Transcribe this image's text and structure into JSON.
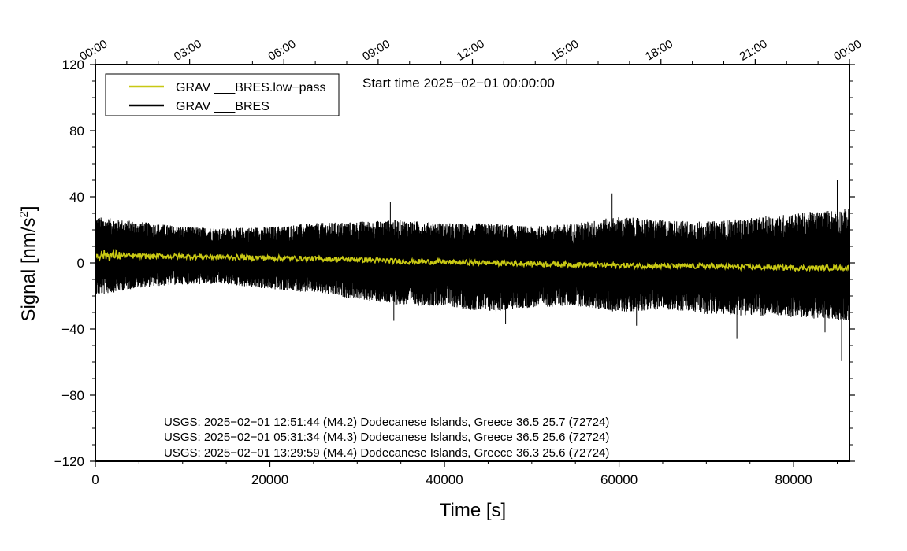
{
  "chart_data": {
    "type": "line",
    "xlabel": "Time [s]",
    "ylabel": "Signal [nm/s",
    "ylabel_superscript": "2",
    "ylabel_suffix": "]",
    "xlim": [
      0,
      86400
    ],
    "ylim": [
      -120,
      120
    ],
    "x_ticks": [
      0,
      20000,
      40000,
      60000,
      80000
    ],
    "x_tick_labels": [
      "0",
      "20000",
      "40000",
      "60000",
      "80000"
    ],
    "y_ticks": [
      120,
      80,
      40,
      0,
      -40,
      -80,
      -120
    ],
    "y_tick_labels": [
      "120",
      "80",
      "40",
      "0",
      "−40",
      "−80",
      "−120"
    ],
    "top_axis_ticks": [
      0,
      10800,
      21600,
      32400,
      43200,
      54000,
      64800,
      75600,
      86400
    ],
    "top_axis_labels": [
      "00:00",
      "03:00",
      "06:00",
      "09:00",
      "12:00",
      "15:00",
      "18:00",
      "21:00",
      "00:00"
    ],
    "start_time_label": "Start time 2025−02−01 00:00:00",
    "legend": [
      {
        "label": "GRAV ___BRES.low−pass",
        "color": "#c8c814"
      },
      {
        "label": "GRAV ___BRES",
        "color": "#000000"
      }
    ],
    "series": [
      {
        "name": "GRAV ___BRES",
        "color": "#000000",
        "envelope_note": "dense noisy signal; approximate upper/lower envelope in nm/s^2",
        "x": [
          0,
          5000,
          10000,
          15000,
          20000,
          25000,
          30000,
          35000,
          40000,
          45000,
          50000,
          55000,
          60000,
          65000,
          70000,
          75000,
          80000,
          86400
        ],
        "upper": [
          28,
          25,
          22,
          21,
          22,
          24,
          25,
          26,
          24,
          24,
          22,
          24,
          28,
          26,
          25,
          27,
          30,
          33
        ],
        "lower": [
          -20,
          -15,
          -13,
          -13,
          -16,
          -18,
          -22,
          -26,
          -26,
          -30,
          -27,
          -26,
          -30,
          -28,
          -31,
          -32,
          -33,
          -35
        ],
        "peaks": [
          {
            "x": 33800,
            "y": 37
          },
          {
            "x": 34200,
            "y": -35
          },
          {
            "x": 47000,
            "y": -37
          },
          {
            "x": 59200,
            "y": 42
          },
          {
            "x": 62000,
            "y": -38
          },
          {
            "x": 73500,
            "y": -46
          },
          {
            "x": 85000,
            "y": 50
          },
          {
            "x": 85500,
            "y": -59
          },
          {
            "x": 83600,
            "y": -42
          }
        ]
      },
      {
        "name": "GRAV ___BRES.low−pass",
        "color": "#c8c814",
        "x": [
          0,
          5000,
          10000,
          15000,
          20000,
          25000,
          30000,
          35000,
          40000,
          45000,
          50000,
          55000,
          60000,
          65000,
          70000,
          75000,
          80000,
          86400
        ],
        "values": [
          5,
          4,
          4,
          3.5,
          3,
          2.5,
          2,
          1,
          0.5,
          0,
          -0.5,
          -1,
          -1.5,
          -2,
          -2,
          -2.5,
          -3,
          -3
        ]
      }
    ],
    "annotations": [
      "USGS: 2025−02−01 12:51:44 (M4.2) Dodecanese Islands, Greece 36.5 25.7 (72724)",
      "USGS: 2025−02−01 05:31:34 (M4.3) Dodecanese Islands, Greece 36.5 25.6 (72724)",
      "USGS: 2025−02−01 13:29:59 (M4.4) Dodecanese Islands, Greece 36.3 25.6 (72724)"
    ]
  }
}
